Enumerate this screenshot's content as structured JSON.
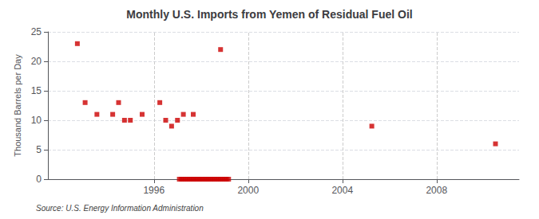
{
  "chart_data": {
    "type": "scatter",
    "title": "Monthly U.S. Imports from Yemen of Residual Fuel Oil",
    "y_label": "Thousand Barrels per Day",
    "annotations": [
      "Source: U.S. Energy Information Administration"
    ],
    "color": "#CC0000",
    "marker": "square",
    "grid": true,
    "xlim": [
      1991.5,
      2011.5
    ],
    "xticks": [
      1996,
      2000,
      2004,
      2008
    ],
    "ylim": [
      0,
      25
    ],
    "yticks": [
      0,
      5,
      10,
      15,
      20,
      25
    ],
    "x": [
      1992.75,
      1993.08,
      1993.58,
      1994.25,
      1994.5,
      1994.75,
      1995.0,
      1995.5,
      1996.5,
      1996.75,
      1997.0,
      1997.25,
      1996.25,
      1997.67,
      1997.08,
      1997.17,
      1997.25,
      1997.33,
      1997.42,
      1997.5,
      1997.58,
      1997.67,
      1997.75,
      1997.83,
      1997.92,
      1998.0,
      1998.08,
      1998.17,
      1998.25,
      1998.33,
      1998.42,
      1998.5,
      1998.58,
      1998.67,
      1998.75,
      1998.83,
      1998.92,
      1999.0,
      1999.08,
      1999.17,
      1998.83,
      2005.25,
      2010.5
    ],
    "values": [
      23,
      13,
      11,
      11,
      13,
      10,
      10,
      11,
      10,
      9,
      10,
      11,
      13,
      11,
      0,
      0,
      0,
      0,
      0,
      0,
      0,
      0,
      0,
      0,
      0,
      0,
      0,
      0,
      0,
      0,
      0,
      0,
      0,
      0,
      0,
      0,
      0,
      0,
      0,
      0,
      22,
      9,
      6
    ]
  }
}
